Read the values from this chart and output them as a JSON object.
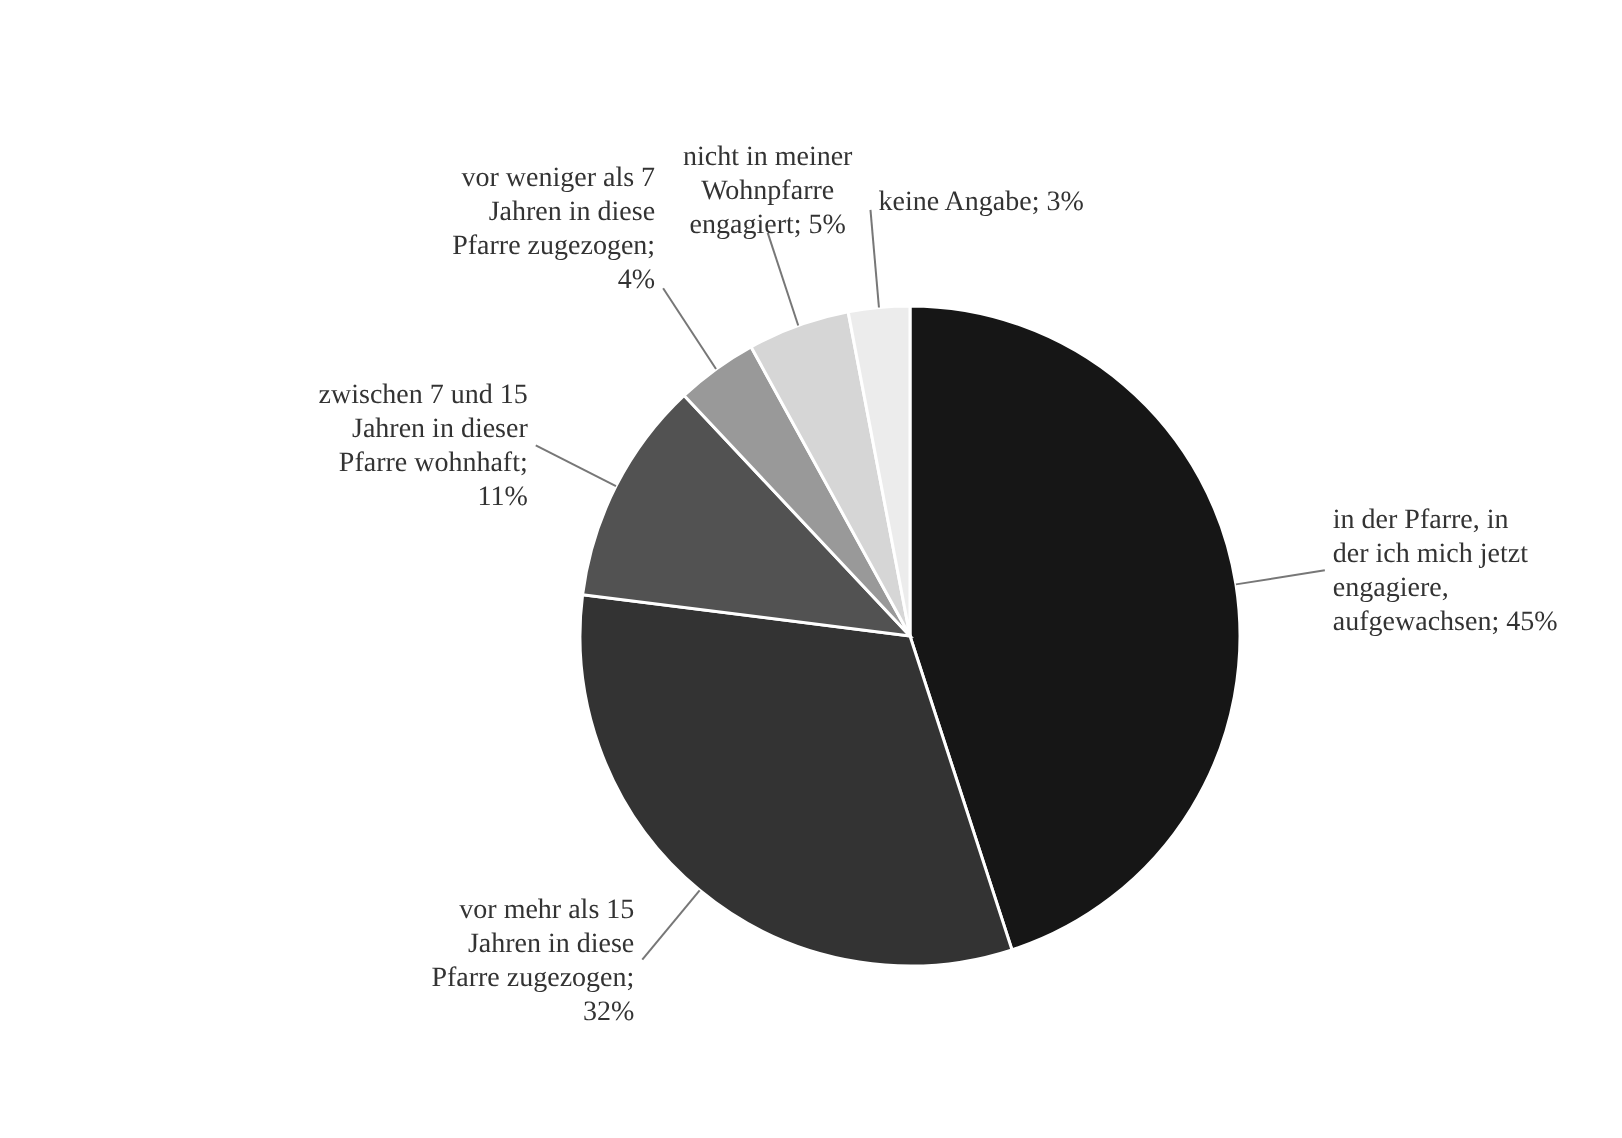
{
  "chart_data": {
    "type": "pie",
    "categories": [
      "in der Pfarre, in der ich mich jetzt engagiere, aufgewachsen",
      "vor mehr als 15 Jahren in diese Pfarre zugezogen",
      "zwischen 7 und 15 Jahren in dieser Pfarre wohnhaft",
      "vor weniger als 7 Jahren in diese Pfarre zugezogen",
      "nicht in meiner Wohnpfarre engagiert",
      "keine Angabe"
    ],
    "values": [
      45,
      32,
      11,
      4,
      5,
      3
    ],
    "value_labels": [
      "; 45%",
      "; 32%",
      "; 11%",
      "; 4%",
      "; 5%",
      "; 3%"
    ],
    "colors": [
      "#161616",
      "#333333",
      "#525252",
      "#999999",
      "#d6d6d6",
      "#ececec"
    ]
  }
}
